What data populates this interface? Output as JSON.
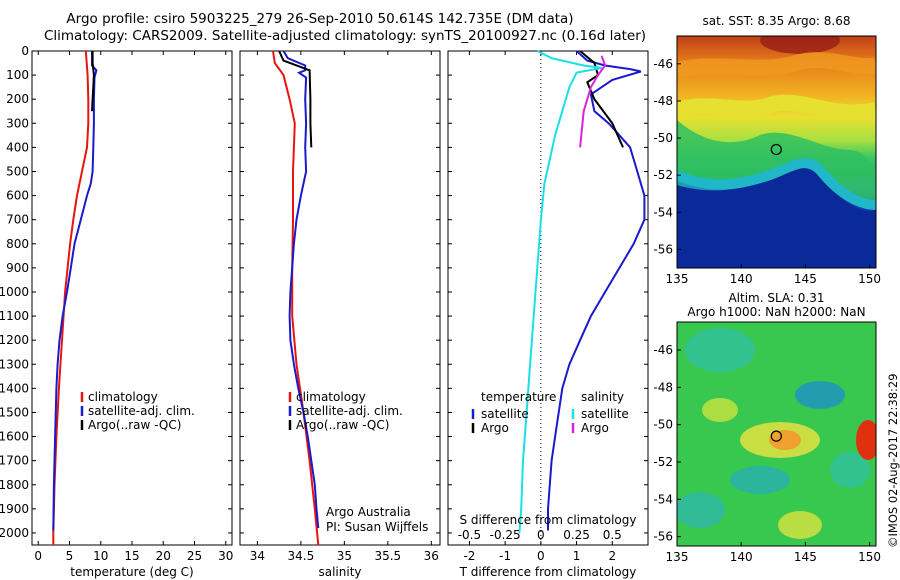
{
  "header": {
    "line1": "Argo profile: csiro 5903225_279 26-Sep-2010 50.614S 142.735E (DM data)",
    "line2": "Climatology: CARS2009. Satellite-adjusted climatology: synTS_20100927.nc (0.16d later)"
  },
  "credits": {
    "org": "Argo Australia",
    "pi": "PI: Susan Wijffels",
    "imos": "©IMOS 02-Aug-2017 22:38:29"
  },
  "colors": {
    "climatology": "#e8140e",
    "satellite": "#1a1acc",
    "argo": "#000000",
    "cyan": "#19e0e8",
    "magenta": "#dd22dd"
  },
  "chart_data": [
    {
      "type": "line",
      "name": "temperature",
      "xlabel": "temperature (deg C)",
      "xlim": [
        -1,
        31
      ],
      "ylim": [
        0,
        2050
      ],
      "x_ticks": [
        0,
        5,
        10,
        15,
        20,
        25,
        30
      ],
      "y_ticks": [
        0,
        100,
        200,
        300,
        400,
        500,
        600,
        700,
        800,
        900,
        1000,
        1100,
        1200,
        1300,
        1400,
        1500,
        1600,
        1700,
        1800,
        1900,
        2000
      ],
      "legend": [
        "climatology",
        "satellite-adj. clim.",
        "Argo(..raw -QC)"
      ],
      "series": [
        {
          "name": "climatology",
          "color": "#e8140e",
          "points": [
            [
              7.6,
              0
            ],
            [
              7.9,
              100
            ],
            [
              8.0,
              200
            ],
            [
              8.0,
              300
            ],
            [
              7.8,
              400
            ],
            [
              7.0,
              500
            ],
            [
              6.2,
              600
            ],
            [
              5.6,
              700
            ],
            [
              5.1,
              800
            ],
            [
              4.7,
              900
            ],
            [
              4.3,
              1000
            ],
            [
              3.8,
              1200
            ],
            [
              3.3,
              1400
            ],
            [
              2.9,
              1600
            ],
            [
              2.6,
              1800
            ],
            [
              2.4,
              2000
            ],
            [
              2.4,
              2050
            ]
          ]
        },
        {
          "name": "satellite-adj. clim.",
          "color": "#1a1acc",
          "points": [
            [
              8.6,
              0
            ],
            [
              8.6,
              60
            ],
            [
              9.3,
              80
            ],
            [
              9.0,
              110
            ],
            [
              8.9,
              200
            ],
            [
              8.9,
              300
            ],
            [
              8.8,
              400
            ],
            [
              8.7,
              500
            ],
            [
              8.4,
              550
            ],
            [
              7.8,
              600
            ],
            [
              6.8,
              700
            ],
            [
              5.8,
              800
            ],
            [
              5.2,
              900
            ],
            [
              4.6,
              1000
            ],
            [
              3.9,
              1100
            ],
            [
              3.4,
              1200
            ],
            [
              3.1,
              1300
            ],
            [
              2.9,
              1400
            ],
            [
              2.7,
              1600
            ],
            [
              2.5,
              1800
            ],
            [
              2.4,
              1990
            ]
          ]
        },
        {
          "name": "Argo(..raw -QC)",
          "color": "#000000",
          "points": [
            [
              8.7,
              0
            ],
            [
              8.7,
              50
            ],
            [
              8.9,
              100
            ],
            [
              8.8,
              150
            ],
            [
              8.7,
              200
            ],
            [
              8.6,
              250
            ]
          ]
        }
      ]
    },
    {
      "type": "line",
      "name": "salinity",
      "xlabel": "salinity",
      "xlim": [
        33.8,
        36.1
      ],
      "ylim": [
        0,
        2050
      ],
      "x_ticks": [
        34,
        34.5,
        35,
        35.5,
        36
      ],
      "legend": [
        "climatology",
        "satellite-adj. clim.",
        "Argo(..raw -QC)"
      ],
      "series": [
        {
          "name": "climatology",
          "color": "#e8140e",
          "points": [
            [
              34.18,
              0
            ],
            [
              34.2,
              50
            ],
            [
              34.3,
              100
            ],
            [
              34.37,
              200
            ],
            [
              34.43,
              300
            ],
            [
              34.42,
              400
            ],
            [
              34.41,
              500
            ],
            [
              34.41,
              700
            ],
            [
              34.4,
              900
            ],
            [
              34.4,
              1100
            ],
            [
              34.45,
              1300
            ],
            [
              34.53,
              1500
            ],
            [
              34.6,
              1700
            ],
            [
              34.66,
              1900
            ],
            [
              34.7,
              2050
            ]
          ]
        },
        {
          "name": "satellite-adj. clim.",
          "color": "#1a1acc",
          "points": [
            [
              34.3,
              0
            ],
            [
              34.35,
              30
            ],
            [
              34.55,
              60
            ],
            [
              34.55,
              80
            ],
            [
              34.48,
              90
            ],
            [
              34.56,
              110
            ],
            [
              34.55,
              200
            ],
            [
              34.56,
              300
            ],
            [
              34.55,
              400
            ],
            [
              34.56,
              500
            ],
            [
              34.5,
              600
            ],
            [
              34.45,
              700
            ],
            [
              34.42,
              800
            ],
            [
              34.4,
              900
            ],
            [
              34.38,
              1000
            ],
            [
              34.37,
              1100
            ],
            [
              34.38,
              1200
            ],
            [
              34.42,
              1300
            ],
            [
              34.47,
              1400
            ],
            [
              34.53,
              1500
            ],
            [
              34.58,
              1600
            ],
            [
              34.62,
              1700
            ],
            [
              34.66,
              1800
            ],
            [
              34.68,
              1900
            ],
            [
              34.7,
              1980
            ]
          ]
        },
        {
          "name": "Argo(..raw -QC)",
          "color": "#000000",
          "points": [
            [
              34.25,
              0
            ],
            [
              34.3,
              40
            ],
            [
              34.6,
              80
            ],
            [
              34.61,
              200
            ],
            [
              34.61,
              300
            ],
            [
              34.62,
              400
            ]
          ]
        }
      ]
    },
    {
      "type": "line",
      "name": "differences",
      "xlabel": "T difference from climatology",
      "xlabel2": "S difference from climatology",
      "xlim": [
        -2.6,
        3.0
      ],
      "ylim": [
        0,
        2050
      ],
      "x_ticks": [
        -2,
        -1,
        0,
        1,
        2
      ],
      "x_ticks2": [
        -0.5,
        -0.25,
        0,
        0.25,
        0.5
      ],
      "x_ticks2_labels": [
        "-0.5",
        "-0.25",
        "0",
        "0.25",
        "0.5"
      ],
      "legend_titles": [
        "temperature",
        "salinity"
      ],
      "legend": [
        "satellite",
        "Argo",
        "satellite",
        "Argo"
      ],
      "series": [
        {
          "name": "temperature satellite",
          "color": "#1a1acc",
          "points": [
            [
              1.0,
              0
            ],
            [
              1.3,
              40
            ],
            [
              1.8,
              60
            ],
            [
              2.5,
              75
            ],
            [
              2.8,
              85
            ],
            [
              2.0,
              120
            ],
            [
              1.4,
              180
            ],
            [
              1.5,
              250
            ],
            [
              1.9,
              300
            ],
            [
              2.2,
              350
            ],
            [
              2.5,
              400
            ],
            [
              2.7,
              500
            ],
            [
              2.9,
              600
            ],
            [
              2.9,
              700
            ],
            [
              2.6,
              800
            ],
            [
              2.2,
              900
            ],
            [
              1.8,
              1000
            ],
            [
              1.4,
              1100
            ],
            [
              1.1,
              1200
            ],
            [
              0.8,
              1300
            ],
            [
              0.6,
              1400
            ],
            [
              0.5,
              1500
            ],
            [
              0.4,
              1600
            ],
            [
              0.3,
              1700
            ],
            [
              0.25,
              1800
            ],
            [
              0.2,
              1900
            ],
            [
              0.2,
              1990
            ]
          ]
        },
        {
          "name": "temperature Argo",
          "color": "#000000",
          "points": [
            [
              1.1,
              0
            ],
            [
              1.5,
              50
            ],
            [
              1.6,
              100
            ],
            [
              1.3,
              130
            ],
            [
              1.5,
              200
            ],
            [
              2.0,
              300
            ],
            [
              2.3,
              400
            ]
          ]
        },
        {
          "name": "salinity satellite",
          "color": "#19e0e8",
          "points": [
            [
              -0.1,
              0
            ],
            [
              0.3,
              30
            ],
            [
              1.2,
              60
            ],
            [
              1.7,
              70
            ],
            [
              1.0,
              90
            ],
            [
              0.8,
              150
            ],
            [
              0.6,
              250
            ],
            [
              0.4,
              350
            ],
            [
              0.25,
              450
            ],
            [
              0.1,
              550
            ],
            [
              0.0,
              700
            ],
            [
              -0.1,
              900
            ],
            [
              -0.2,
              1100
            ],
            [
              -0.3,
              1300
            ],
            [
              -0.4,
              1500
            ],
            [
              -0.5,
              1700
            ],
            [
              -0.55,
              1900
            ],
            [
              -0.6,
              2000
            ]
          ]
        },
        {
          "name": "salinity Argo",
          "color": "#dd22dd",
          "points": [
            [
              1.7,
              20
            ],
            [
              1.8,
              60
            ],
            [
              1.6,
              100
            ],
            [
              1.4,
              150
            ],
            [
              1.2,
              250
            ],
            [
              1.1,
              400
            ]
          ]
        }
      ]
    },
    {
      "type": "heatmap",
      "name": "sst-map",
      "title": "sat. SST: 8.35 Argo: 8.68",
      "xlim": [
        135,
        150.5
      ],
      "ylim": [
        -57,
        -44.5
      ],
      "x_ticks": [
        135,
        140,
        145,
        150
      ],
      "y_ticks": [
        -46,
        -48,
        -50,
        -52,
        -54,
        -56
      ],
      "marker": {
        "lon": 142.735,
        "lat": -50.614
      }
    },
    {
      "type": "heatmap",
      "name": "sla-map",
      "title": "Altim. SLA: 0.31",
      "subtitle": "Argo h1000: NaN h2000: NaN",
      "xlim": [
        135,
        150.5
      ],
      "ylim": [
        -56.5,
        -44.5
      ],
      "x_ticks": [
        135,
        140,
        145,
        150
      ],
      "y_ticks": [
        -46,
        -48,
        -50,
        -52,
        -54,
        -56
      ],
      "marker": {
        "lon": 142.735,
        "lat": -50.614
      }
    }
  ]
}
